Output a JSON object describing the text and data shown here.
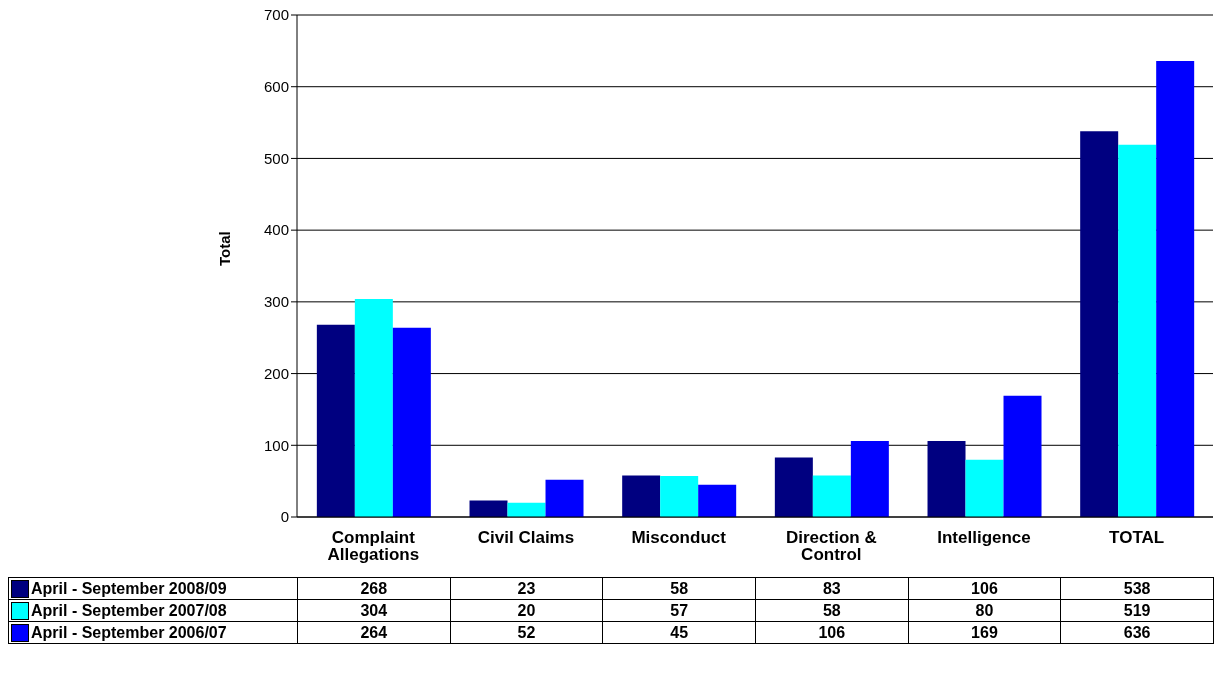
{
  "chart_data": {
    "type": "bar",
    "ylabel": "Total",
    "categories": [
      "Complaint Allegations",
      "Civil Claims",
      "Misconduct",
      "Direction & Control",
      "Intelligence",
      "TOTAL"
    ],
    "series": [
      {
        "name": "April - September 2008/09",
        "color": "#000080",
        "values": [
          268,
          23,
          58,
          83,
          106,
          538
        ]
      },
      {
        "name": "April - September 2007/08",
        "color": "#00ffff",
        "values": [
          304,
          20,
          57,
          58,
          80,
          519
        ]
      },
      {
        "name": "April - September 2006/07",
        "color": "#0000ff",
        "values": [
          264,
          52,
          45,
          106,
          169,
          636
        ]
      }
    ],
    "ylim": [
      0,
      700
    ],
    "yticks": [
      0,
      100,
      200,
      300,
      400,
      500,
      600,
      700
    ],
    "grid": "y",
    "legend": "bottom",
    "data_labels": true
  }
}
